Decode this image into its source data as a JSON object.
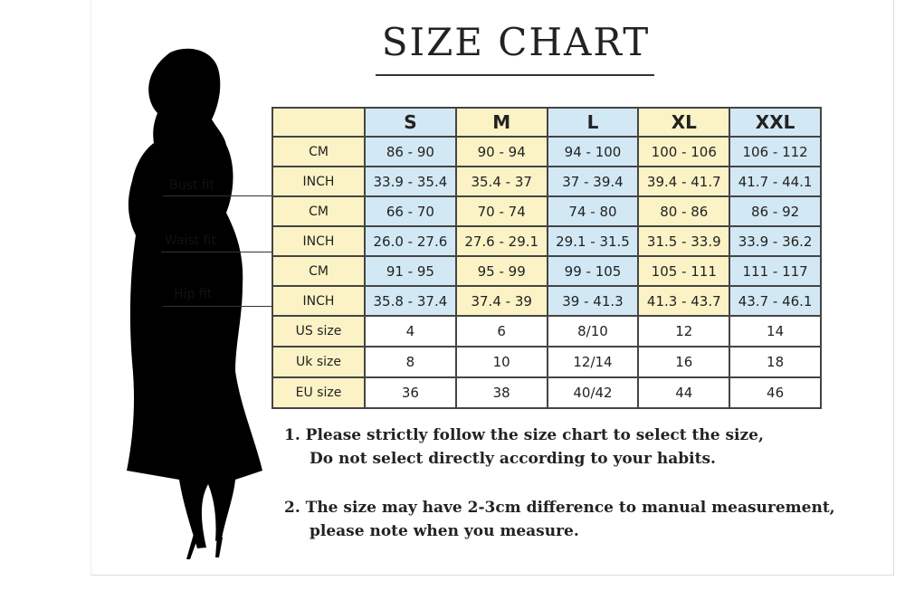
{
  "title": "SIZE CHART",
  "fit_labels": {
    "bust": "Bust fit",
    "waist": "Waist fit",
    "hip": "Hip fit"
  },
  "table": {
    "headers": [
      "",
      "S",
      "M",
      "L",
      "XL",
      "XXL"
    ],
    "rows": [
      {
        "label": "CM",
        "values": [
          "86 - 90",
          "90 - 94",
          "94 - 100",
          "100 - 106",
          "106 - 112"
        ]
      },
      {
        "label": "INCH",
        "values": [
          "33.9 - 35.4",
          "35.4 - 37",
          "37 - 39.4",
          "39.4 - 41.7",
          "41.7 - 44.1"
        ]
      },
      {
        "label": "CM",
        "values": [
          "66 - 70",
          "70 - 74",
          "74 - 80",
          "80 - 86",
          "86 - 92"
        ]
      },
      {
        "label": "INCH",
        "values": [
          "26.0 - 27.6",
          "27.6 - 29.1",
          "29.1 - 31.5",
          "31.5 - 33.9",
          "33.9 - 36.2"
        ]
      },
      {
        "label": "CM",
        "values": [
          "91 - 95",
          "95 - 99",
          "99 - 105",
          "105 - 111",
          "111 - 117"
        ]
      },
      {
        "label": "INCH",
        "values": [
          "35.8 - 37.4",
          "37.4 - 39",
          "39 - 41.3",
          "41.3 - 43.7",
          "43.7 - 46.1"
        ]
      },
      {
        "label": "US size",
        "values": [
          "4",
          "6",
          "8/10",
          "12",
          "14"
        ]
      },
      {
        "label": "Uk size",
        "values": [
          "8",
          "10",
          "12/14",
          "16",
          "18"
        ]
      },
      {
        "label": "EU size",
        "values": [
          "36",
          "38",
          "40/42",
          "44",
          "46"
        ]
      }
    ]
  },
  "notes": [
    {
      "line1": "1.  Please strictly follow the size chart to select the size,",
      "line2": "Do not select directly according to your habits."
    },
    {
      "line1": "2.  The size may have 2-3cm difference  to manual measurement,",
      "line2": "please note when you measure."
    }
  ],
  "colors": {
    "yellow": "#fbf3c5",
    "blue": "#d2e8f4",
    "border": "#444444"
  }
}
